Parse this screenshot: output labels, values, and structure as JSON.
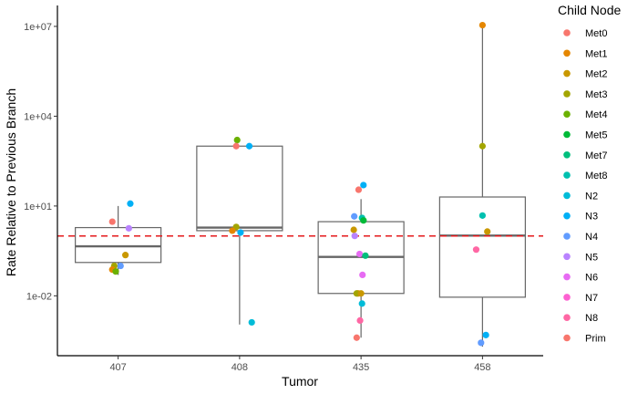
{
  "chart_data": {
    "type": "boxplot",
    "xlabel": "Tumor",
    "ylabel": "Rate Relative to Previous Branch",
    "categories": [
      "407",
      "408",
      "435",
      "458"
    ],
    "y_scale": "log10",
    "ylim": [
      0.0001,
      50000000
    ],
    "yticks": [
      {
        "value": 0.01,
        "label": "1e-02"
      },
      {
        "value": 10,
        "label": "1e+01"
      },
      {
        "value": 10000,
        "label": "1e+04"
      },
      {
        "value": 10000000,
        "label": "1e+07"
      }
    ],
    "reference_line": {
      "value": 1,
      "color": "#e41a1c",
      "style": "dashed"
    },
    "boxes": [
      {
        "category": "407",
        "whisker_low": 0.05,
        "q1": 0.13,
        "median": 0.45,
        "q3": 1.9,
        "whisker_high": 10
      },
      {
        "category": "408",
        "whisker_low": 0.0011,
        "q1": 1.5,
        "median": 1.9,
        "q3": 1000,
        "whisker_high": 1000
      },
      {
        "category": "435",
        "whisker_low": 0.0004,
        "q1": 0.012,
        "median": 0.2,
        "q3": 3.0,
        "whisker_high": 17
      },
      {
        "category": "458",
        "whisker_low": 0.0002,
        "q1": 0.009,
        "median": 1.03,
        "q3": 20,
        "whisker_high": 11000000
      }
    ],
    "legend": {
      "title": "Child Node",
      "position": "right",
      "entries": [
        {
          "name": "Met0",
          "color": "#F8766D"
        },
        {
          "name": "Met1",
          "color": "#E58700"
        },
        {
          "name": "Met2",
          "color": "#C99800"
        },
        {
          "name": "Met3",
          "color": "#A3A500"
        },
        {
          "name": "Met4",
          "color": "#6BB100"
        },
        {
          "name": "Met5",
          "color": "#00BA38"
        },
        {
          "name": "Met7",
          "color": "#00BF7D"
        },
        {
          "name": "Met8",
          "color": "#00C0AF"
        },
        {
          "name": "N2",
          "color": "#00BCD8"
        },
        {
          "name": "N3",
          "color": "#00B0F6"
        },
        {
          "name": "N4",
          "color": "#619CFF"
        },
        {
          "name": "N5",
          "color": "#B983FF"
        },
        {
          "name": "N6",
          "color": "#E76BF3"
        },
        {
          "name": "N7",
          "color": "#FD61D1"
        },
        {
          "name": "N8",
          "color": "#FF67A4"
        },
        {
          "name": "Prim",
          "color": "#F8766D"
        }
      ]
    },
    "points": [
      {
        "category": "407",
        "jitter": 0.25,
        "y": 12,
        "node": "N3"
      },
      {
        "category": "407",
        "jitter": -0.12,
        "y": 3.0,
        "node": "Prim"
      },
      {
        "category": "407",
        "jitter": 0.22,
        "y": 1.8,
        "node": "N5"
      },
      {
        "category": "407",
        "jitter": 0.15,
        "y": 0.23,
        "node": "Met2"
      },
      {
        "category": "407",
        "jitter": 0.05,
        "y": 0.1,
        "node": "N4"
      },
      {
        "category": "407",
        "jitter": -0.08,
        "y": 0.1,
        "node": "Met3"
      },
      {
        "category": "407",
        "jitter": -0.12,
        "y": 0.075,
        "node": "Met1"
      },
      {
        "category": "407",
        "jitter": -0.05,
        "y": 0.065,
        "node": "Met4"
      },
      {
        "category": "408",
        "jitter": -0.05,
        "y": 1600,
        "node": "Met4"
      },
      {
        "category": "408",
        "jitter": -0.07,
        "y": 1000,
        "node": "Prim"
      },
      {
        "category": "408",
        "jitter": 0.2,
        "y": 1000,
        "node": "N3"
      },
      {
        "category": "408",
        "jitter": -0.07,
        "y": 2.0,
        "node": "Met3"
      },
      {
        "category": "408",
        "jitter": -0.15,
        "y": 1.5,
        "node": "Met1"
      },
      {
        "category": "408",
        "jitter": 0.02,
        "y": 1.3,
        "node": "N3"
      },
      {
        "category": "408",
        "jitter": 0.25,
        "y": 0.0013,
        "node": "N2"
      },
      {
        "category": "435",
        "jitter": 0.05,
        "y": 50,
        "node": "N3"
      },
      {
        "category": "435",
        "jitter": -0.05,
        "y": 35,
        "node": "Prim"
      },
      {
        "category": "435",
        "jitter": -0.14,
        "y": 4.5,
        "node": "N4"
      },
      {
        "category": "435",
        "jitter": 0.02,
        "y": 4.0,
        "node": "Met8"
      },
      {
        "category": "435",
        "jitter": 0.05,
        "y": 3.3,
        "node": "Met5"
      },
      {
        "category": "435",
        "jitter": -0.15,
        "y": 1.6,
        "node": "Met2"
      },
      {
        "category": "435",
        "jitter": -0.13,
        "y": 1.0,
        "node": "N5"
      },
      {
        "category": "435",
        "jitter": -0.03,
        "y": 0.25,
        "node": "N6"
      },
      {
        "category": "435",
        "jitter": 0.09,
        "y": 0.22,
        "node": "Met7"
      },
      {
        "category": "435",
        "jitter": 0.03,
        "y": 0.05,
        "node": "N6"
      },
      {
        "category": "435",
        "jitter": -0.06,
        "y": 0.012,
        "node": "Met1"
      },
      {
        "category": "435",
        "jitter": -0.09,
        "y": 0.012,
        "node": "Met3"
      },
      {
        "category": "435",
        "jitter": 0.0,
        "y": 0.012,
        "node": "Met2"
      },
      {
        "category": "435",
        "jitter": 0.02,
        "y": 0.0055,
        "node": "N2"
      },
      {
        "category": "435",
        "jitter": -0.02,
        "y": 0.0015,
        "node": "N8"
      },
      {
        "category": "435",
        "jitter": -0.09,
        "y": 0.0004,
        "node": "Prim"
      },
      {
        "category": "458",
        "jitter": 0.0,
        "y": 11000000,
        "node": "Met1"
      },
      {
        "category": "458",
        "jitter": 0.0,
        "y": 1000,
        "node": "Met3"
      },
      {
        "category": "458",
        "jitter": 0.0,
        "y": 4.8,
        "node": "Met8"
      },
      {
        "category": "458",
        "jitter": 0.1,
        "y": 1.4,
        "node": "Met2"
      },
      {
        "category": "458",
        "jitter": -0.13,
        "y": 0.35,
        "node": "N8"
      },
      {
        "category": "458",
        "jitter": 0.07,
        "y": 0.00049,
        "node": "N3"
      },
      {
        "category": "458",
        "jitter": -0.03,
        "y": 0.00027,
        "node": "N4"
      }
    ]
  }
}
